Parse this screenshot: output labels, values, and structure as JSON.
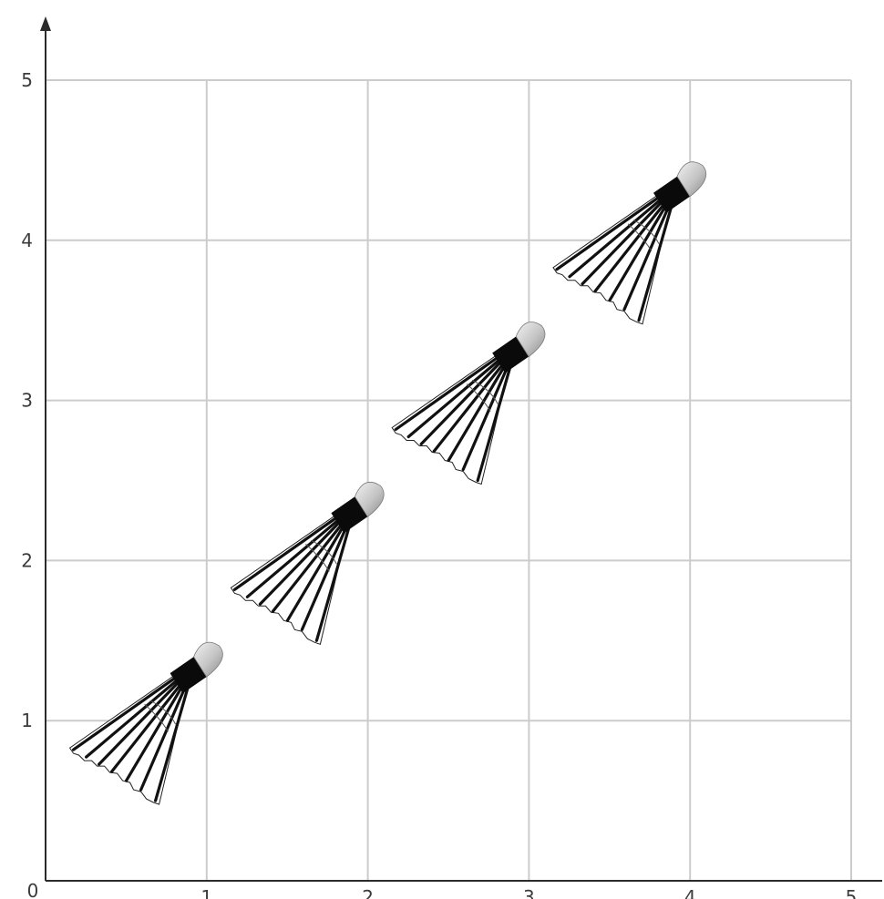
{
  "chart_data": {
    "type": "scatter",
    "title": "",
    "xlabel": "",
    "ylabel": "",
    "xlim": [
      0,
      5
    ],
    "ylim": [
      0,
      5
    ],
    "grid": true,
    "x_ticks": [
      "1",
      "2",
      "3",
      "4",
      "5"
    ],
    "y_ticks": [
      "1",
      "2",
      "3",
      "4",
      "5"
    ],
    "origin_label": "0",
    "marker": "shuttlecock-icon",
    "points": [
      {
        "x": 0.75,
        "y": 0.5
      },
      {
        "x": 1.75,
        "y": 1.5
      },
      {
        "x": 2.75,
        "y": 2.5
      },
      {
        "x": 3.75,
        "y": 3.5
      }
    ]
  },
  "colors": {
    "grid": "#cccccc",
    "axis": "#2b2b2b",
    "feather": "#111111",
    "cork_light": "#efefef",
    "cork_dark": "#8f8f8f"
  }
}
